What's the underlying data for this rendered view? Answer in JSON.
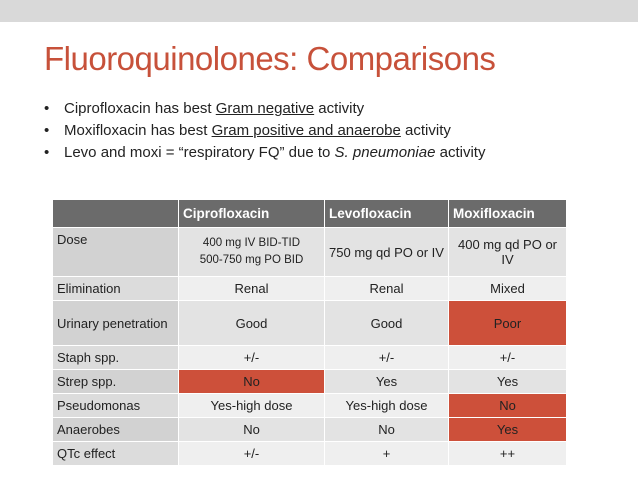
{
  "slide": {
    "title": "Fluoroquinolones: Comparisons",
    "bullets": [
      {
        "pre": "Ciprofloxacin has best ",
        "underline": "Gram negative",
        "post": " activity",
        "italic": ""
      },
      {
        "pre": "Moxifloxacin has best ",
        "underline": "Gram positive and anaerobe",
        "post": " activity",
        "italic": ""
      },
      {
        "pre": "Levo and moxi = “respiratory FQ” due to ",
        "underline": "",
        "italic": "S. pneumoniae",
        "post": " activity"
      }
    ]
  },
  "table": {
    "headers": [
      "",
      "Ciprofloxacin",
      "Levofloxacin",
      "Moxifloxacin"
    ],
    "rows": [
      {
        "label": "Dose",
        "cells": [
          "400 mg IV BID-TID",
          "750 mg qd PO or IV",
          "400 mg qd PO or IV"
        ],
        "cipro_line2": "500-750 mg PO BID"
      },
      {
        "label": "Elimination",
        "cells": [
          "Renal",
          "Renal",
          "Mixed"
        ]
      },
      {
        "label": "Urinary penetration",
        "cells": [
          "Good",
          "Good",
          "Poor"
        ]
      },
      {
        "label": "Staph spp.",
        "cells": [
          "+/-",
          "+/-",
          "+/-"
        ]
      },
      {
        "label": "Strep spp.",
        "cells": [
          "No",
          "Yes",
          "Yes"
        ]
      },
      {
        "label": "Pseudomonas",
        "cells": [
          "Yes-high dose",
          "Yes-high dose",
          "No"
        ]
      },
      {
        "label": "Anaerobes",
        "cells": [
          "No",
          "No",
          "Yes"
        ]
      },
      {
        "label": "QTc effect",
        "cells": [
          "+/-",
          "+",
          "++"
        ]
      }
    ],
    "highlight_color": "#cd503a"
  }
}
